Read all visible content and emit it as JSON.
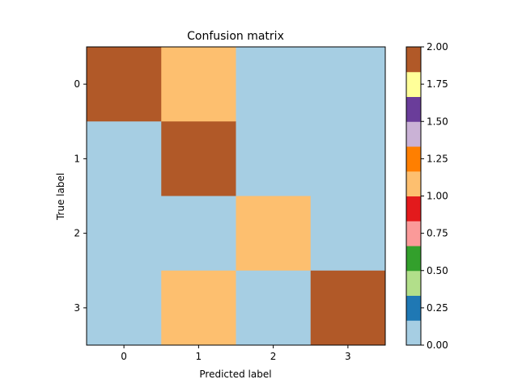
{
  "chart_data": {
    "type": "heatmap",
    "title": "Confusion matrix",
    "xlabel": "Predicted label",
    "ylabel": "True label",
    "x_categories": [
      "0",
      "1",
      "2",
      "3"
    ],
    "y_categories": [
      "0",
      "1",
      "2",
      "3"
    ],
    "matrix": [
      [
        2,
        1,
        0,
        0
      ],
      [
        0,
        2,
        0,
        0
      ],
      [
        0,
        0,
        1,
        0
      ],
      [
        0,
        1,
        0,
        2
      ]
    ],
    "vmin": 0,
    "vmax": 2,
    "colormap": "Paired",
    "colorbar_ticks": [
      "0.00",
      "0.25",
      "0.50",
      "0.75",
      "1.00",
      "1.25",
      "1.50",
      "1.75",
      "2.00"
    ],
    "colors": [
      "#a6cee3",
      "#1f78b4",
      "#b2df8a",
      "#33a02c",
      "#fb9a99",
      "#e31a1c",
      "#fdbf6f",
      "#ff7f00",
      "#cab2d6",
      "#6a3d9a",
      "#ffff99",
      "#b15928"
    ]
  }
}
